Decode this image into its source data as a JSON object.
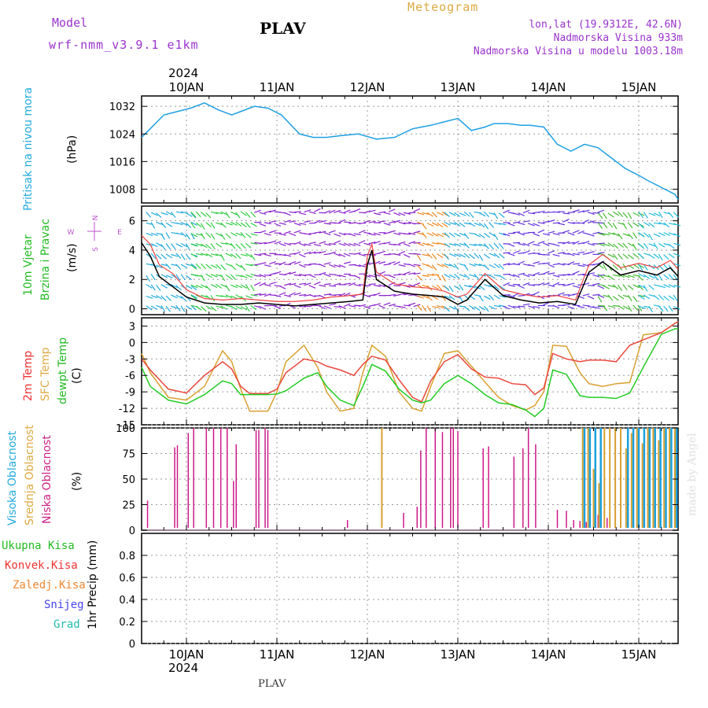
{
  "header": {
    "model_label": "Model",
    "model_name": "wrf-nmm_v3.9.1 e1km",
    "station": "PLAV",
    "title": "Meteogram",
    "lonlat": "lon,lat (19.9312E, 42.6N)",
    "elevation": "Nadmorska Visina 933m",
    "model_elevation": "Nadmorska Visina u modelu 1003.18m"
  },
  "axis": {
    "year": "2024",
    "day_labels": [
      "10JAN",
      "11JAN",
      "12JAN",
      "13JAN",
      "14JAN",
      "15JAN"
    ],
    "bottom_station": "PLAV"
  },
  "watermark": "made by Angel",
  "colors": {
    "pressure": "#1ea0e0",
    "temp2m": "#e8483c",
    "sfc": "#d8a030",
    "dewpt": "#22cc22",
    "low_cloud": "#cc1a88",
    "mid_cloud": "#d8a030",
    "high_cloud": "#1aa0dd",
    "wind_speed": "#000000",
    "wind_gust": "#ee4444",
    "label_cyan": "#22aadd",
    "label_green": "#22bb22",
    "label_red": "#ee3333",
    "label_orange": "#ee8833",
    "label_blue": "#4444ee",
    "label_teal": "#22bbaa",
    "label_magenta": "#cc2288",
    "label_purple": "#9933cc",
    "label_gold": "#ddaa44"
  },
  "wind_compass": {
    "w": "W",
    "e": "E",
    "n": "N",
    "s": "S"
  },
  "chart_data": [
    {
      "type": "line",
      "panel": "pressure",
      "ylabel_name": "Pritisak na nivou mora",
      "ylabel_unit": "(hPa)",
      "ylim": [
        1004,
        1035
      ],
      "yticks": [
        1008,
        1016,
        1024,
        1032
      ],
      "x": [
        0,
        0.1,
        0.25,
        0.4,
        0.55,
        0.7,
        0.85,
        1.0,
        1.1,
        1.25,
        1.4,
        1.55,
        1.75,
        1.9,
        2.05,
        2.2,
        2.4,
        2.6,
        2.8,
        3.0,
        3.1,
        3.2,
        3.35,
        3.5,
        3.65,
        3.8,
        3.9,
        4.05,
        4.2,
        4.3,
        4.45,
        4.6,
        4.75,
        4.9,
        5.05,
        5.2,
        5.35,
        5.5,
        5.6,
        5.75,
        5.9,
        6.0
      ],
      "series": [
        {
          "name": "",
          "values": [
            1023,
            1025.5,
            1029.5,
            1030.5,
            1031.5,
            1033,
            1031,
            1029.5,
            1030.5,
            1032,
            1031.5,
            1029.5,
            1024,
            1023,
            1023,
            1023.5,
            1024,
            1022.5,
            1023,
            1025.5,
            1026,
            1026.5,
            1027.5,
            1028.5,
            1025,
            1026,
            1027,
            1027,
            1026.5,
            1026.5,
            1026,
            1021,
            1019,
            1021,
            1020,
            1017,
            1014,
            1012,
            1010.5,
            1008.5,
            1006.5,
            1005
          ]
        }
      ]
    },
    {
      "type": "line",
      "panel": "wind",
      "ylabel_name": "10m Vjetar",
      "ylabel_name2": "Brzina i Pravac",
      "ylabel_unit": "(m/s)",
      "ylim": [
        -0.4,
        7.0
      ],
      "yticks": [
        0,
        2,
        4,
        6
      ],
      "x": [
        0,
        0.1,
        0.2,
        0.35,
        0.5,
        0.7,
        0.9,
        1.1,
        1.3,
        1.5,
        1.7,
        1.9,
        2.1,
        2.3,
        2.45,
        2.5,
        2.55,
        2.6,
        2.8,
        3.0,
        3.2,
        3.35,
        3.5,
        3.6,
        3.8,
        4.0,
        4.2,
        4.4,
        4.6,
        4.8,
        4.95,
        5.1,
        5.3,
        5.5,
        5.7,
        5.85,
        6.0
      ],
      "series": [
        {
          "name": "",
          "values": [
            4.5,
            3.6,
            2.2,
            1.5,
            0.8,
            0.4,
            0.3,
            0.3,
            0.4,
            0.3,
            0.2,
            0.3,
            0.4,
            0.5,
            0.6,
            3.0,
            4.0,
            2.0,
            1.2,
            1.0,
            0.9,
            0.8,
            0.3,
            0.6,
            2.0,
            0.9,
            0.6,
            0.4,
            0.5,
            0.3,
            2.5,
            3.2,
            2.3,
            2.6,
            2.3,
            2.8,
            2.2
          ]
        },
        {
          "name": "",
          "values": [
            5.0,
            4.4,
            3.0,
            2.4,
            1.3,
            0.7,
            0.6,
            0.7,
            0.6,
            0.5,
            0.5,
            0.6,
            0.8,
            0.9,
            1.0,
            3.6,
            4.4,
            2.5,
            1.7,
            1.5,
            1.4,
            1.2,
            0.8,
            1.0,
            2.4,
            1.3,
            1.0,
            0.8,
            0.9,
            0.6,
            3.0,
            3.7,
            2.8,
            3.1,
            2.8,
            3.3,
            2.7
          ]
        }
      ]
    },
    {
      "type": "line",
      "panel": "temperature",
      "ylabel_names": [
        "2m Temp",
        "SFC Temp",
        "dewpt Temp"
      ],
      "ylabel_unit": "(C)",
      "ylim": [
        -15,
        4.5
      ],
      "yticks": [
        -15,
        -12,
        -9,
        -6,
        -3,
        0,
        3
      ],
      "x": [
        0,
        0.1,
        0.3,
        0.5,
        0.7,
        0.9,
        1.0,
        1.1,
        1.2,
        1.4,
        1.5,
        1.6,
        1.8,
        1.95,
        2.05,
        2.2,
        2.35,
        2.45,
        2.55,
        2.7,
        2.85,
        3.0,
        3.1,
        3.2,
        3.35,
        3.5,
        3.65,
        3.8,
        3.95,
        4.1,
        4.25,
        4.35,
        4.45,
        4.55,
        4.7,
        4.85,
        4.95,
        5.1,
        5.25,
        5.4,
        5.55,
        5.75,
        5.9,
        6.0
      ],
      "series": [
        {
          "name": "2m Temp",
          "values": [
            -3,
            -5,
            -8.5,
            -9.2,
            -6,
            -3.5,
            -4.8,
            -8,
            -9.3,
            -9.3,
            -8.5,
            -5.5,
            -3,
            -3.5,
            -4.3,
            -5,
            -6,
            -4,
            -2.5,
            -3.2,
            -6.8,
            -10,
            -10.8,
            -7,
            -3.5,
            -2.2,
            -4.8,
            -6.3,
            -6.5,
            -7.5,
            -7.7,
            -9.5,
            -8.3,
            -2,
            -3,
            -3.5,
            -3.2,
            -3.2,
            -3.5,
            -0.5,
            0.5,
            1.8,
            3.5,
            3.8
          ]
        },
        {
          "name": "SFC Temp",
          "values": [
            -2,
            -5.5,
            -10,
            -10.5,
            -8,
            -1.5,
            -3.5,
            -8.5,
            -12.5,
            -12.5,
            -9,
            -3.5,
            -0.5,
            -4.5,
            -9,
            -12.5,
            -12,
            -5.5,
            -0.5,
            -2.5,
            -9,
            -12,
            -12.5,
            -8,
            -2,
            -1.5,
            -4.3,
            -7.2,
            -10,
            -11.5,
            -12.3,
            -11.5,
            -9,
            -0.5,
            -0.7,
            -5.5,
            -7.5,
            -8,
            -7.5,
            -7.3,
            1.4,
            1.8,
            3.5,
            3.8
          ]
        },
        {
          "name": "dewpt Temp",
          "values": [
            -4.5,
            -8,
            -10.5,
            -11.2,
            -9.5,
            -7,
            -7.5,
            -9.5,
            -9.5,
            -9.5,
            -9.4,
            -8.8,
            -6.5,
            -5.5,
            -8,
            -10.5,
            -11.5,
            -8,
            -4,
            -5.2,
            -8.5,
            -10.5,
            -11,
            -10.5,
            -7.5,
            -6,
            -7.5,
            -9.5,
            -11,
            -11.3,
            -12.3,
            -13.5,
            -12,
            -5,
            -5.8,
            -9.7,
            -10,
            -10,
            -10.2,
            -9.2,
            -4.5,
            1.5,
            2.5,
            2.5
          ]
        }
      ]
    },
    {
      "type": "bar",
      "panel": "cloud",
      "ylabel_names": [
        "Visoka Oblacnost",
        "Srednja Oblacnost",
        "Niska Oblacnost"
      ],
      "ylabel_unit": "(%)",
      "ylim": [
        0,
        100
      ],
      "yticks": [
        0,
        25,
        50,
        75,
        100
      ],
      "series": [
        {
          "name": "Niska Oblacnost",
          "x": [
            0.07,
            0.37,
            0.4,
            0.52,
            0.58,
            0.72,
            0.8,
            0.88,
            0.95,
            1.02,
            1.05,
            1.27,
            1.3,
            1.37,
            1.4,
            2.28,
            2.9,
            3.05,
            3.09,
            3.15,
            3.25,
            3.33,
            3.42,
            3.45,
            3.5,
            3.78,
            3.84,
            4.12,
            4.22,
            4.28,
            4.36,
            4.6,
            4.7,
            4.78,
            4.85,
            4.92,
            5.05,
            5.15
          ],
          "values": [
            29,
            81,
            83,
            95,
            100,
            100,
            100,
            100,
            100,
            48,
            84,
            98,
            98,
            100,
            98,
            10,
            17,
            23,
            78,
            100,
            100,
            96,
            100,
            100,
            97,
            80,
            82,
            72,
            80,
            100,
            84,
            20,
            19,
            10,
            9,
            8,
            15,
            12
          ]
        },
        {
          "name": "Srednja Oblacnost",
          "x": [
            2.66,
            4.88,
            4.94,
            5.0,
            5.06,
            5.12,
            5.18,
            5.24,
            5.3,
            5.36,
            5.42,
            5.48,
            5.54,
            5.6,
            5.66,
            5.72,
            5.78,
            5.84,
            5.9,
            5.96
          ],
          "values": [
            100,
            100,
            100,
            60,
            46,
            100,
            100,
            100,
            100,
            80,
            95,
            100,
            85,
            100,
            100,
            88,
            100,
            100,
            100,
            100
          ]
        },
        {
          "name": "Visoka Oblacnost",
          "x": [
            4.9,
            4.96,
            5.02,
            5.08,
            5.38,
            5.44,
            5.5,
            5.56,
            5.62,
            5.68,
            5.74,
            5.8,
            5.86,
            5.92,
            5.98
          ],
          "values": [
            100,
            100,
            100,
            100,
            100,
            100,
            100,
            100,
            100,
            100,
            100,
            100,
            100,
            100,
            100
          ]
        }
      ]
    },
    {
      "type": "line",
      "panel": "precipitation",
      "ylabel_names": [
        "Ukupna Kisa",
        "Konvek.Kisa",
        "Zaledj.Kisa",
        "Snijeg",
        "Grad"
      ],
      "ylabel_unit": "1hr Precip (mm)",
      "ylim": [
        0,
        1.0
      ],
      "yticks": [
        0,
        0.2,
        0.4,
        0.6,
        0.8
      ],
      "series": []
    }
  ]
}
